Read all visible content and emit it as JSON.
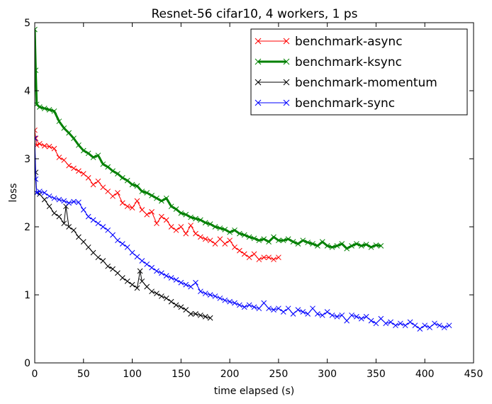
{
  "chart_data": {
    "type": "line",
    "title": "Resnet-56 cifar10, 4 workers, 1 ps",
    "xlabel": "time elapsed (s)",
    "ylabel": "loss",
    "xlim": [
      0,
      450
    ],
    "ylim": [
      0,
      5
    ],
    "xticks": [
      0,
      50,
      100,
      150,
      200,
      250,
      300,
      350,
      400,
      450
    ],
    "yticks": [
      0,
      1,
      2,
      3,
      4,
      5
    ],
    "grid": false,
    "legend_position": "top-right",
    "marker": "x",
    "series": [
      {
        "name": "benchmark-async",
        "color": "#ff0000",
        "line_width": 1,
        "x": [
          0,
          1,
          2,
          5,
          10,
          15,
          20,
          25,
          30,
          35,
          40,
          45,
          50,
          55,
          60,
          65,
          70,
          75,
          80,
          85,
          90,
          95,
          100,
          105,
          110,
          115,
          120,
          125,
          130,
          135,
          140,
          145,
          150,
          155,
          160,
          165,
          170,
          175,
          180,
          185,
          190,
          195,
          200,
          205,
          210,
          215,
          220,
          225,
          230,
          235,
          240,
          245,
          250
        ],
        "y": [
          3.42,
          3.3,
          3.2,
          3.22,
          3.19,
          3.18,
          3.15,
          3.02,
          2.98,
          2.9,
          2.86,
          2.82,
          2.78,
          2.72,
          2.62,
          2.67,
          2.58,
          2.52,
          2.45,
          2.5,
          2.35,
          2.3,
          2.28,
          2.38,
          2.25,
          2.18,
          2.22,
          2.05,
          2.15,
          2.1,
          2.0,
          1.95,
          2.0,
          1.9,
          2.02,
          1.9,
          1.85,
          1.82,
          1.8,
          1.75,
          1.82,
          1.75,
          1.8,
          1.7,
          1.65,
          1.6,
          1.55,
          1.6,
          1.52,
          1.55,
          1.55,
          1.52,
          1.55
        ]
      },
      {
        "name": "benchmark-ksync",
        "color": "#008000",
        "line_width": 3,
        "x": [
          0,
          1,
          2,
          5,
          10,
          15,
          20,
          25,
          30,
          35,
          40,
          45,
          50,
          55,
          60,
          65,
          70,
          75,
          80,
          85,
          90,
          95,
          100,
          105,
          110,
          115,
          120,
          125,
          130,
          135,
          140,
          145,
          150,
          155,
          160,
          165,
          170,
          175,
          180,
          185,
          190,
          195,
          200,
          205,
          210,
          215,
          220,
          225,
          230,
          235,
          240,
          245,
          250,
          255,
          260,
          265,
          270,
          275,
          280,
          285,
          290,
          295,
          300,
          305,
          310,
          315,
          320,
          325,
          330,
          335,
          340,
          345,
          350,
          355
        ],
        "y": [
          4.9,
          4.3,
          3.8,
          3.76,
          3.74,
          3.72,
          3.7,
          3.55,
          3.45,
          3.38,
          3.3,
          3.2,
          3.12,
          3.08,
          3.02,
          3.05,
          2.92,
          2.88,
          2.82,
          2.78,
          2.72,
          2.68,
          2.62,
          2.6,
          2.52,
          2.5,
          2.46,
          2.42,
          2.38,
          2.42,
          2.3,
          2.26,
          2.2,
          2.18,
          2.14,
          2.12,
          2.1,
          2.06,
          2.04,
          2.0,
          1.98,
          1.96,
          1.92,
          1.95,
          1.9,
          1.88,
          1.85,
          1.83,
          1.8,
          1.82,
          1.78,
          1.85,
          1.8,
          1.8,
          1.82,
          1.78,
          1.75,
          1.8,
          1.77,
          1.75,
          1.72,
          1.78,
          1.72,
          1.7,
          1.72,
          1.75,
          1.68,
          1.72,
          1.75,
          1.72,
          1.74,
          1.7,
          1.73,
          1.72
        ]
      },
      {
        "name": "benchmark-momentum",
        "color": "#000000",
        "line_width": 1,
        "x": [
          0,
          1,
          2,
          5,
          10,
          15,
          20,
          25,
          30,
          32,
          35,
          40,
          45,
          50,
          55,
          60,
          65,
          70,
          75,
          80,
          85,
          90,
          95,
          100,
          105,
          108,
          110,
          115,
          120,
          125,
          130,
          135,
          140,
          145,
          150,
          155,
          160,
          165,
          170,
          175,
          180
        ],
        "y": [
          3.3,
          2.8,
          2.5,
          2.48,
          2.4,
          2.3,
          2.2,
          2.15,
          2.05,
          2.3,
          2.0,
          1.95,
          1.85,
          1.78,
          1.7,
          1.62,
          1.55,
          1.5,
          1.42,
          1.38,
          1.32,
          1.25,
          1.2,
          1.15,
          1.1,
          1.35,
          1.2,
          1.12,
          1.05,
          1.02,
          0.98,
          0.95,
          0.9,
          0.85,
          0.82,
          0.78,
          0.72,
          0.72,
          0.7,
          0.68,
          0.66
        ]
      },
      {
        "name": "benchmark-sync",
        "color": "#0000ff",
        "line_width": 1,
        "x": [
          0,
          1,
          2,
          5,
          10,
          15,
          20,
          25,
          30,
          35,
          40,
          45,
          50,
          55,
          60,
          65,
          70,
          75,
          80,
          85,
          90,
          95,
          100,
          105,
          110,
          115,
          120,
          125,
          130,
          135,
          140,
          145,
          150,
          155,
          160,
          165,
          170,
          175,
          180,
          185,
          190,
          195,
          200,
          205,
          210,
          215,
          220,
          225,
          230,
          235,
          240,
          245,
          250,
          255,
          260,
          265,
          270,
          275,
          280,
          285,
          290,
          295,
          300,
          305,
          310,
          315,
          320,
          325,
          330,
          335,
          340,
          345,
          350,
          355,
          360,
          365,
          370,
          375,
          380,
          385,
          390,
          395,
          400,
          405,
          410,
          415,
          420,
          425
        ],
        "y": [
          3.3,
          2.7,
          2.5,
          2.52,
          2.5,
          2.45,
          2.42,
          2.4,
          2.38,
          2.35,
          2.37,
          2.36,
          2.25,
          2.15,
          2.1,
          2.05,
          2.0,
          1.95,
          1.88,
          1.8,
          1.75,
          1.7,
          1.62,
          1.56,
          1.5,
          1.45,
          1.4,
          1.35,
          1.32,
          1.28,
          1.25,
          1.22,
          1.18,
          1.15,
          1.12,
          1.18,
          1.05,
          1.02,
          1.0,
          0.98,
          0.95,
          0.92,
          0.9,
          0.88,
          0.85,
          0.82,
          0.85,
          0.82,
          0.8,
          0.88,
          0.8,
          0.78,
          0.8,
          0.75,
          0.8,
          0.72,
          0.78,
          0.75,
          0.72,
          0.8,
          0.72,
          0.7,
          0.75,
          0.7,
          0.68,
          0.7,
          0.62,
          0.7,
          0.68,
          0.65,
          0.68,
          0.62,
          0.58,
          0.65,
          0.58,
          0.6,
          0.55,
          0.58,
          0.55,
          0.6,
          0.55,
          0.5,
          0.55,
          0.52,
          0.58,
          0.55,
          0.52,
          0.55
        ]
      }
    ]
  }
}
